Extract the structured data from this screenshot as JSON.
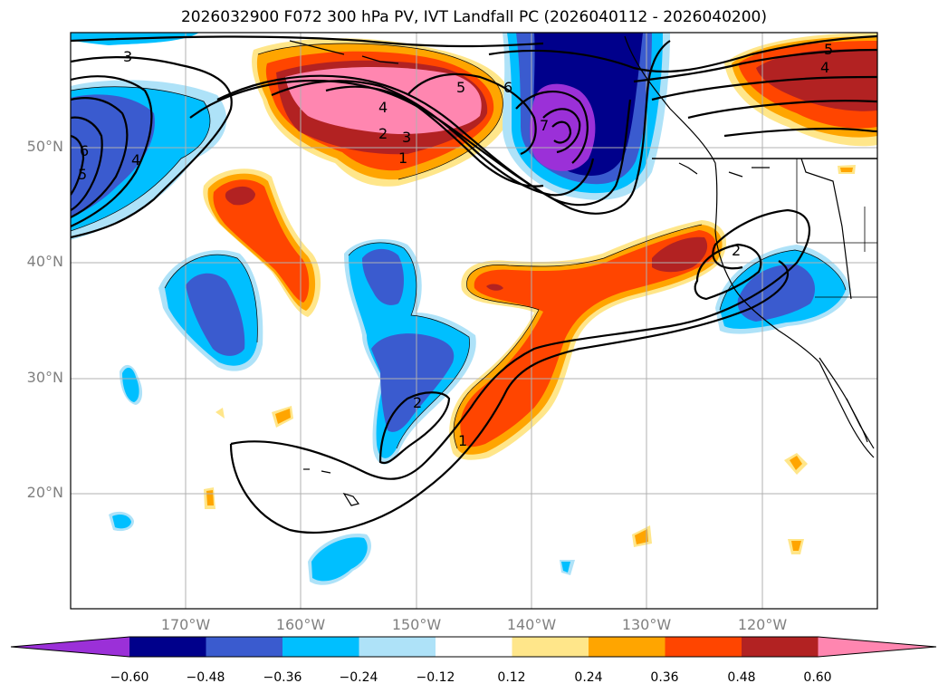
{
  "title": "2026032900 F072 300 hPa PV, IVT Landfall PC (2026040112 - 2026040200)",
  "lat_labels": [
    "50°N",
    "40°N",
    "30°N",
    "20°N"
  ],
  "lon_labels": [
    "170°W",
    "160°W",
    "150°W",
    "140°W",
    "130°W",
    "120°W"
  ],
  "colorbar": {
    "ticks": [
      "−0.60",
      "−0.48",
      "−0.36",
      "−0.24",
      "−0.12",
      "0.12",
      "0.24",
      "0.36",
      "0.48",
      "0.60"
    ],
    "colors": [
      "#9b30d8",
      "#00008b",
      "#3a5bcf",
      "#00bfff",
      "#aee2f8",
      "#ffffff",
      "#ffe68a",
      "#ffa500",
      "#ff4500",
      "#b22222",
      "#ff86b0"
    ]
  },
  "contour_labels": [
    "3",
    "6",
    "5",
    "4",
    "4",
    "2",
    "3",
    "1",
    "5",
    "6",
    "7",
    "5",
    "4",
    "2",
    "2",
    "1"
  ]
}
